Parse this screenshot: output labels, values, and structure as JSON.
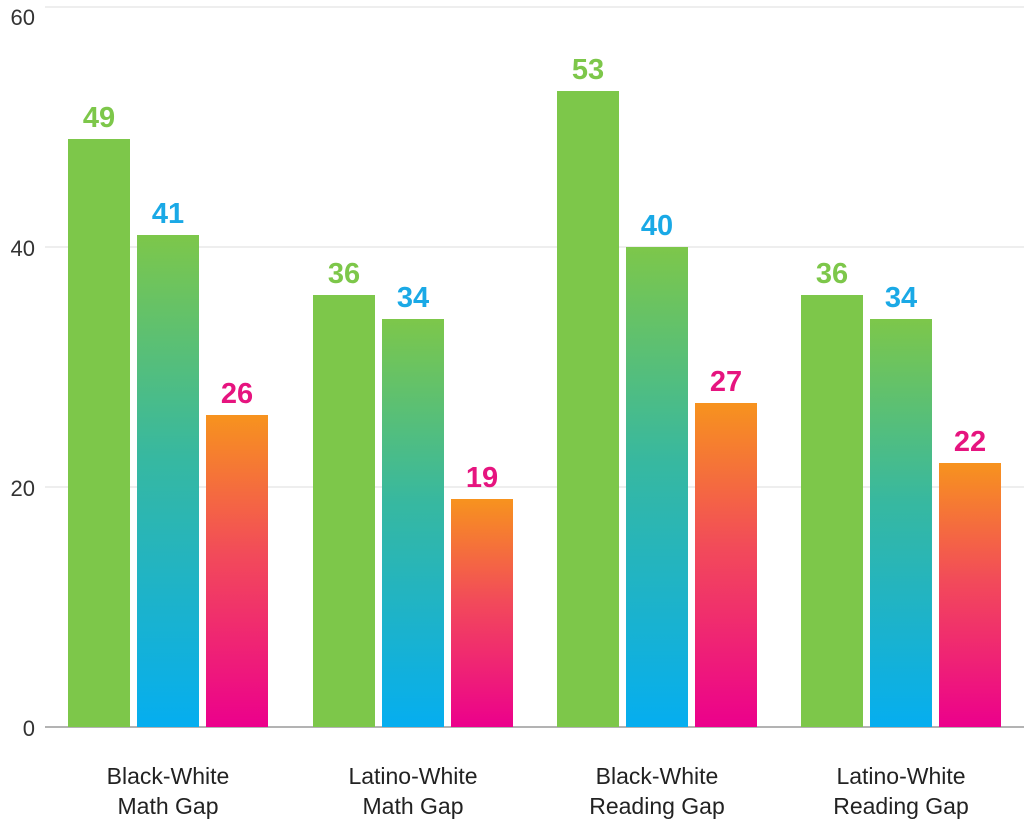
{
  "chart_data": {
    "type": "bar",
    "categories": [
      [
        "Black-White",
        "Math Gap"
      ],
      [
        "Latino-White",
        "Math Gap"
      ],
      [
        "Black-White",
        "Reading Gap"
      ],
      [
        "Latino-White",
        "Reading Gap"
      ]
    ],
    "series": [
      {
        "values": [
          49,
          36,
          53,
          36
        ],
        "color": "#7dc74a",
        "label_color": "#7dc74a",
        "fill": "solid"
      },
      {
        "values": [
          41,
          34,
          40,
          34
        ],
        "color": "#1aa9e6",
        "label_color": "#1aa9e6",
        "fill": "gradient-green-to-blue"
      },
      {
        "values": [
          26,
          19,
          27,
          22
        ],
        "color": "#ec0b8d",
        "label_color": "#e6147f",
        "fill": "gradient-orange-to-magenta"
      }
    ],
    "ylim": [
      0,
      60
    ],
    "yticks": [
      "0",
      "20",
      "40",
      "60"
    ],
    "grid": true,
    "title": "",
    "xlabel": "",
    "ylabel": ""
  }
}
